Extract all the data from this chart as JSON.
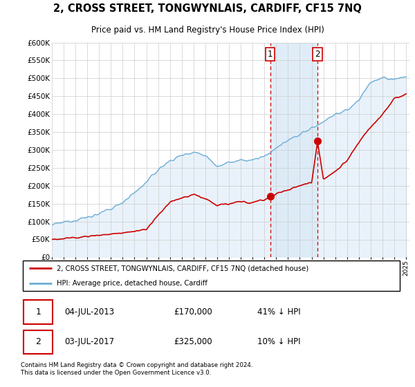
{
  "title": "2, CROSS STREET, TONGWYNLAIS, CARDIFF, CF15 7NQ",
  "subtitle": "Price paid vs. HM Land Registry's House Price Index (HPI)",
  "ylim": [
    0,
    600000
  ],
  "yticks": [
    0,
    50000,
    100000,
    150000,
    200000,
    250000,
    300000,
    350000,
    400000,
    450000,
    500000,
    550000,
    600000
  ],
  "hpi_color": "#6baed6",
  "hpi_fill_color": "#dbeaf7",
  "price_color": "#cc0000",
  "sale1_date_num": 2013.5,
  "sale1_price": 170000,
  "sale2_date_num": 2017.5,
  "sale2_price": 325000,
  "sale1_label": "1",
  "sale2_label": "2",
  "legend_house": "2, CROSS STREET, TONGWYNLAIS, CARDIFF, CF15 7NQ (detached house)",
  "legend_hpi": "HPI: Average price, detached house, Cardiff",
  "annotation1": [
    "1",
    "04-JUL-2013",
    "£170,000",
    "41% ↓ HPI"
  ],
  "annotation2": [
    "2",
    "03-JUL-2017",
    "£325,000",
    "10% ↓ HPI"
  ],
  "footnote": "Contains HM Land Registry data © Crown copyright and database right 2024.\nThis data is licensed under the Open Government Licence v3.0.",
  "grid_color": "#cccccc",
  "highlight_color": "#dbeaf7"
}
